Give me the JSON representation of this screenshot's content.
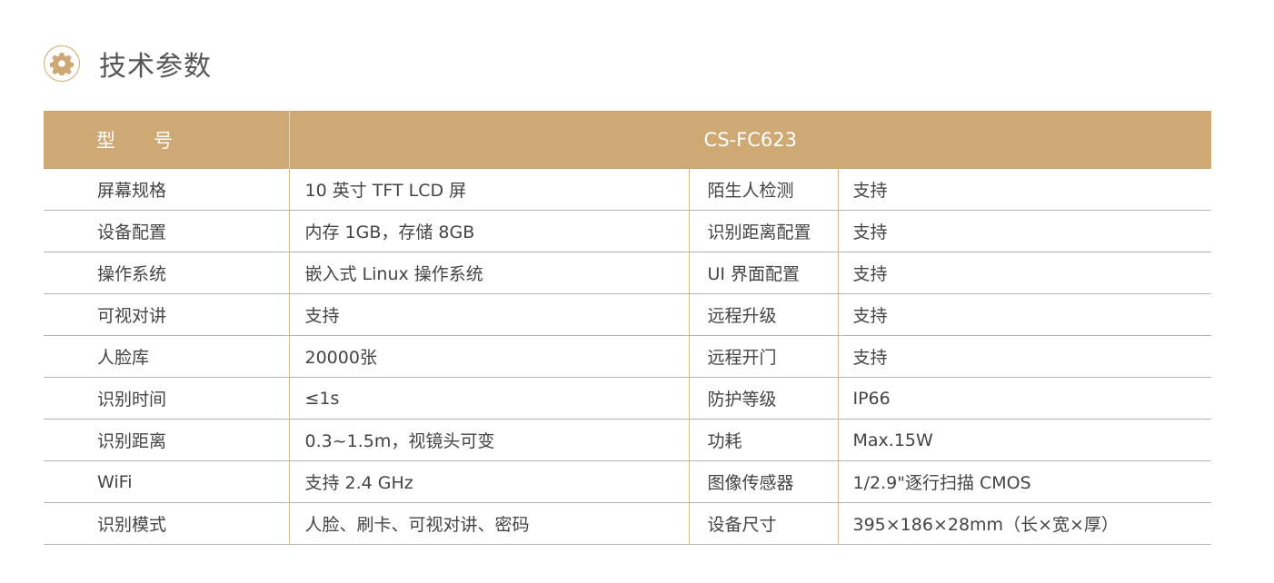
{
  "section": {
    "title": "技术参数",
    "icon": "gear-icon",
    "accent_color": "#cfa974"
  },
  "table": {
    "header": {
      "label": "型　　号",
      "value": "CS-FC623"
    },
    "rows": [
      [
        "屏幕规格",
        "10 英寸 TFT LCD 屏",
        "陌生人检测",
        "支持"
      ],
      [
        "设备配置",
        "内存 1GB，存储 8GB",
        "识别距离配置",
        "支持"
      ],
      [
        "操作系统",
        "嵌入式 Linux 操作系统",
        "UI 界面配置",
        "支持"
      ],
      [
        "可视对讲",
        "支持",
        "远程升级",
        "支持"
      ],
      [
        "人脸库",
        "20000张",
        "远程开门",
        "支持"
      ],
      [
        "识别时间",
        "≤1s",
        "防护等级",
        "IP66"
      ],
      [
        "识别距离",
        "0.3~1.5m，视镜头可变",
        "功耗",
        "Max.15W"
      ],
      [
        "WiFi",
        "支持 2.4 GHz",
        "图像传感器",
        "1/2.9\"逐行扫描 CMOS"
      ],
      [
        "识别模式",
        "人脸、刷卡、可视对讲、密码",
        "设备尺寸",
        "395×186×28mm（长×宽×厚）"
      ]
    ]
  }
}
